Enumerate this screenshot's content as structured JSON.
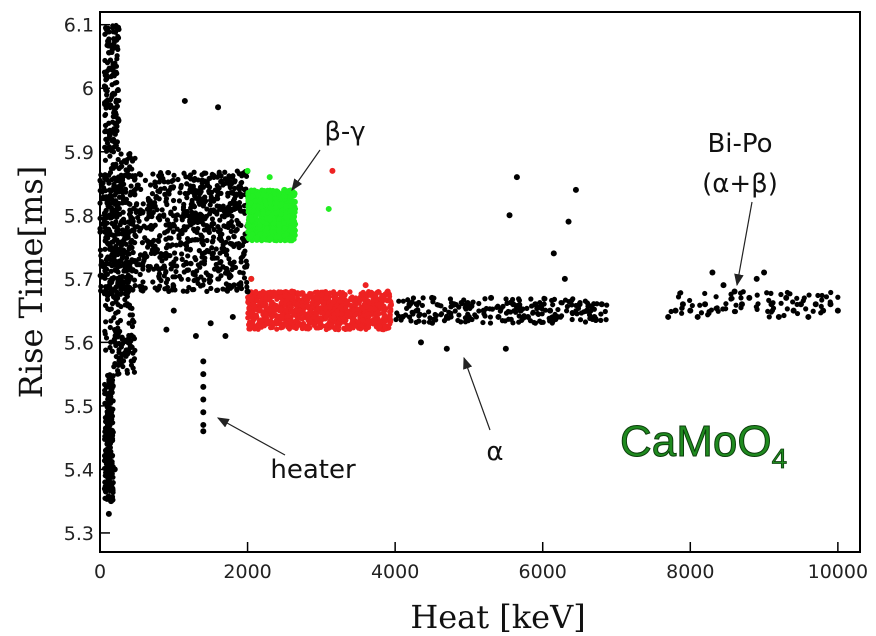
{
  "chart_data": {
    "type": "scatter",
    "title": "",
    "xlabel": "Heat [keV]",
    "ylabel": "Rise Time[ms]",
    "xlim": [
      0,
      10300
    ],
    "ylim": [
      5.27,
      6.12
    ],
    "xticks": [
      0,
      2000,
      4000,
      6000,
      8000,
      10000
    ],
    "yticks": [
      5.3,
      5.4,
      5.5,
      5.6,
      5.7,
      5.8,
      5.9,
      6.0,
      6.1
    ],
    "ytick_labels": [
      "5.3",
      "5.4",
      "5.5",
      "5.6",
      "5.7",
      "5.8",
      "5.9",
      "6",
      "6.1"
    ],
    "grid": false,
    "colors": {
      "black": "#000000",
      "green": "#22ee22",
      "red": "#ee2222",
      "material": "#1f8a1f"
    },
    "series": [
      {
        "color": "#000000",
        "points": [
          [
            1150,
            5.98
          ],
          [
            1600,
            5.97
          ],
          [
            5650,
            5.86
          ],
          [
            6450,
            5.84
          ],
          [
            5550,
            5.8
          ],
          [
            6350,
            5.79
          ],
          [
            6150,
            5.74
          ],
          [
            6300,
            5.7
          ],
          [
            2000,
            5.68
          ],
          [
            5500,
            5.59
          ],
          [
            4700,
            5.59
          ],
          [
            4350,
            5.6
          ],
          [
            1400,
            5.57
          ],
          [
            1400,
            5.55
          ],
          [
            1400,
            5.53
          ],
          [
            1400,
            5.51
          ],
          [
            1400,
            5.49
          ],
          [
            1400,
            5.47
          ],
          [
            1400,
            5.46
          ],
          [
            1300,
            5.61
          ],
          [
            1500,
            5.63
          ],
          [
            1700,
            5.61
          ],
          [
            1800,
            5.64
          ],
          [
            900,
            5.62
          ],
          [
            1000,
            5.65
          ],
          [
            4100,
            5.64
          ],
          [
            4200,
            5.66
          ],
          [
            4300,
            5.65
          ],
          [
            4500,
            5.67
          ],
          [
            4800,
            5.66
          ],
          [
            5000,
            5.64
          ],
          [
            5200,
            5.65
          ],
          [
            5300,
            5.67
          ],
          [
            5400,
            5.64
          ],
          [
            5600,
            5.66
          ],
          [
            5700,
            5.65
          ],
          [
            5800,
            5.64
          ],
          [
            5900,
            5.66
          ],
          [
            6100,
            5.65
          ],
          [
            6200,
            5.64
          ],
          [
            6500,
            5.66
          ],
          [
            6600,
            5.65
          ],
          [
            6700,
            5.64
          ],
          [
            6800,
            5.66
          ],
          [
            7700,
            5.64
          ],
          [
            7800,
            5.65
          ],
          [
            7900,
            5.66
          ],
          [
            8000,
            5.65
          ],
          [
            8100,
            5.64
          ],
          [
            8200,
            5.66
          ],
          [
            8300,
            5.71
          ],
          [
            8450,
            5.69
          ],
          [
            8600,
            5.68
          ],
          [
            8700,
            5.66
          ],
          [
            8800,
            5.67
          ],
          [
            8900,
            5.7
          ],
          [
            9000,
            5.71
          ],
          [
            9100,
            5.66
          ],
          [
            9200,
            5.64
          ],
          [
            9300,
            5.67
          ],
          [
            9400,
            5.65
          ],
          [
            9500,
            5.66
          ],
          [
            9600,
            5.64
          ],
          [
            9700,
            5.66
          ],
          [
            9800,
            5.65
          ],
          [
            9900,
            5.66
          ],
          [
            10000,
            5.65
          ],
          [
            150,
            5.35
          ],
          [
            120,
            5.33
          ],
          [
            200,
            5.4
          ],
          [
            100,
            5.44
          ]
        ]
      },
      {
        "color": "#22ee22",
        "points": [
          [
            2000,
            5.87
          ],
          [
            2600,
            5.83
          ],
          [
            2050,
            5.7
          ],
          [
            3100,
            5.81
          ],
          [
            2300,
            5.86
          ],
          [
            2500,
            5.84
          ]
        ]
      },
      {
        "color": "#ee2222",
        "points": [
          [
            3150,
            5.87
          ],
          [
            2050,
            5.7
          ],
          [
            2600,
            5.68
          ],
          [
            3600,
            5.69
          ],
          [
            3900,
            5.68
          ]
        ]
      }
    ],
    "regions": [
      {
        "color": "#000000",
        "x": [
          0,
          2000
        ],
        "y": [
          5.68,
          5.87
        ],
        "density": "dense"
      },
      {
        "color": "#22ee22",
        "x": [
          2000,
          2650
        ],
        "y": [
          5.76,
          5.84
        ],
        "density": "dense"
      },
      {
        "color": "#ee2222",
        "x": [
          2000,
          3950
        ],
        "y": [
          5.62,
          5.68
        ],
        "density": "dense"
      },
      {
        "color": "#000000",
        "x": [
          4000,
          6900
        ],
        "y": [
          5.63,
          5.67
        ],
        "density": "medium"
      },
      {
        "color": "#000000",
        "x": [
          7700,
          10000
        ],
        "y": [
          5.64,
          5.68
        ],
        "density": "sparse"
      }
    ],
    "annotations": [
      {
        "text": "β-γ",
        "xy": [
          2600,
          5.83
        ]
      },
      {
        "text": "Bi-Po",
        "xy": [
          8600,
          5.71
        ]
      },
      {
        "text": "(α+β)",
        "xy": [
          8600,
          5.71
        ]
      },
      {
        "text": "α",
        "xy": [
          4900,
          5.6
        ]
      },
      {
        "text": "heater",
        "xy": [
          1450,
          5.48
        ]
      }
    ],
    "material_label": {
      "base": "CaMoO",
      "subscript": "4"
    }
  }
}
